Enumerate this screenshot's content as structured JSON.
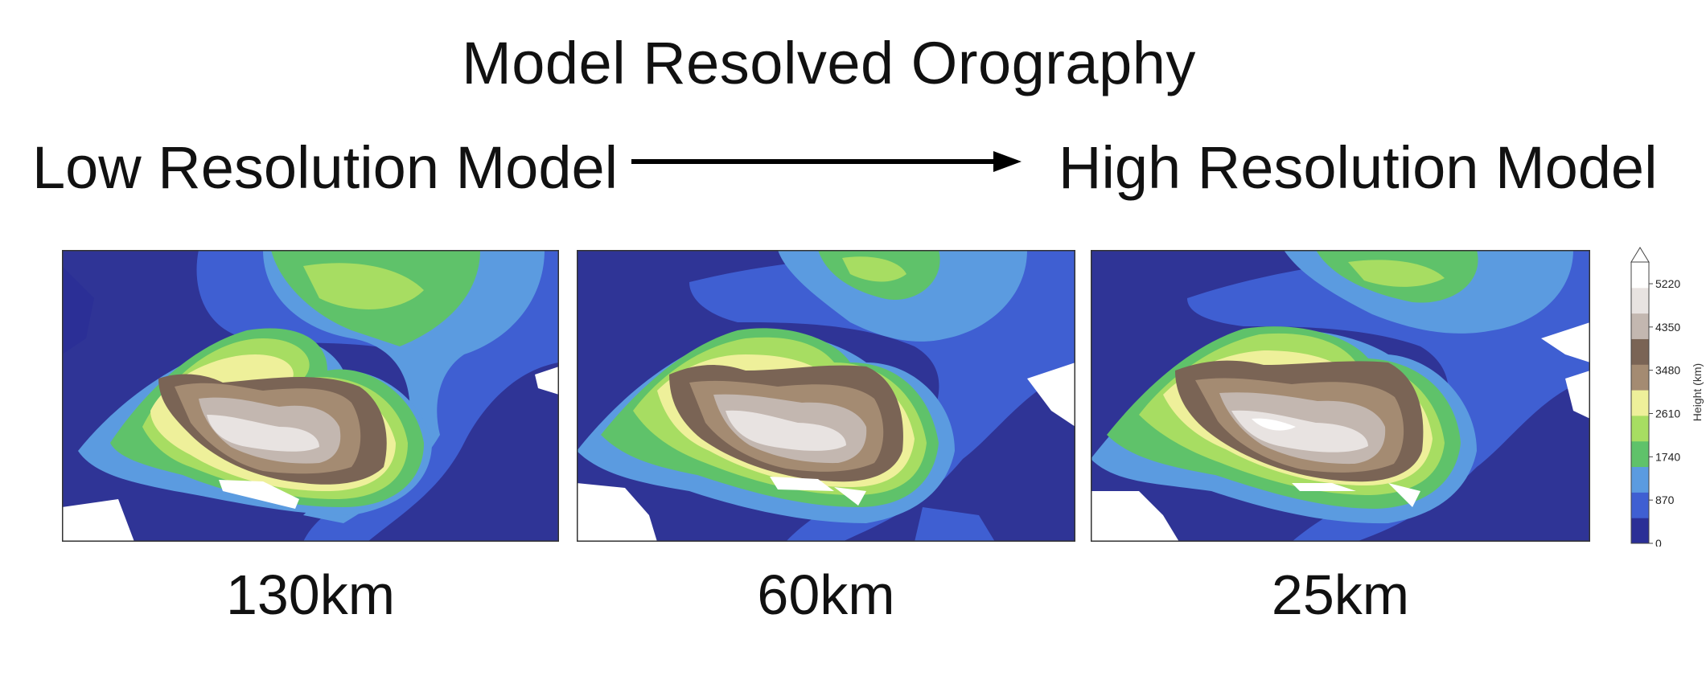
{
  "title": "Model Resolved Orography",
  "low_label": "Low Resolution Model",
  "high_label": "High Resolution Model",
  "panels": [
    {
      "resolution": "130km"
    },
    {
      "resolution": "60km"
    },
    {
      "resolution": "25km"
    }
  ],
  "colorbar": {
    "label": "Height (km)",
    "ticks": [
      "5220",
      "4350",
      "3480",
      "2610",
      "1740",
      "870",
      "0"
    ],
    "colors": [
      "#2b2f96",
      "#3f5fd2",
      "#5b9be0",
      "#5fc26a",
      "#a7dd62",
      "#eef09a",
      "#a48b72",
      "#7a6455",
      "#c3b7b0",
      "#e8e3e1",
      "#ffffff"
    ]
  }
}
